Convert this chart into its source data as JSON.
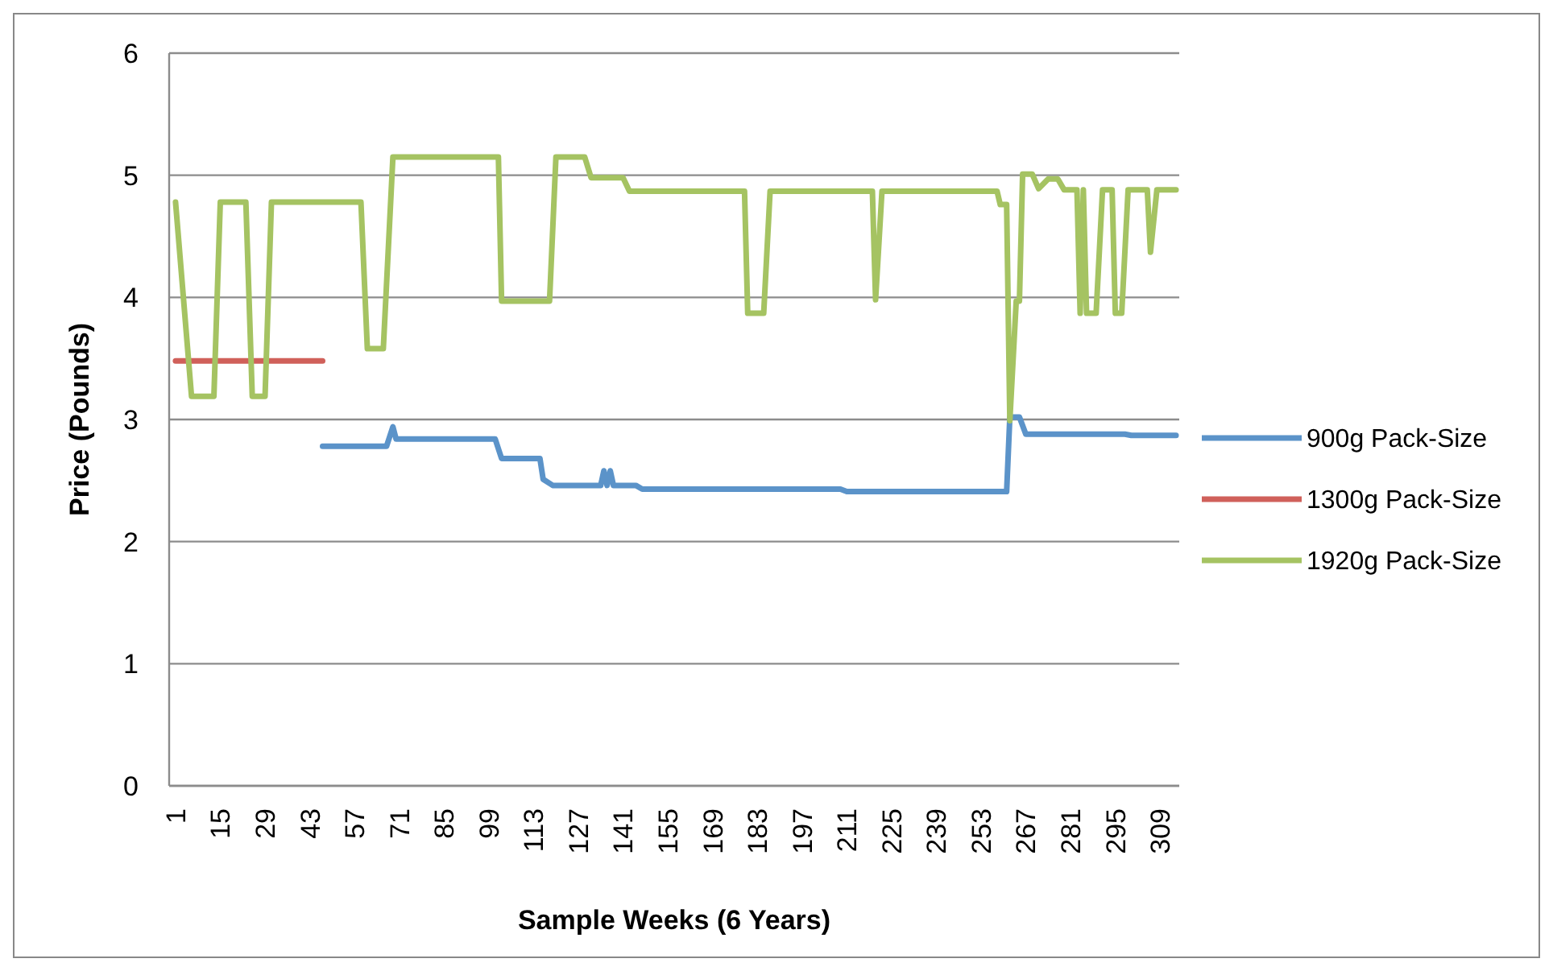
{
  "chart_data": {
    "type": "line",
    "xlabel": "Sample Weeks (6 Years)",
    "ylabel": "Price (Pounds)",
    "xlim": [
      -1,
      315
    ],
    "xticks": [
      1,
      15,
      29,
      43,
      57,
      71,
      85,
      99,
      113,
      127,
      141,
      155,
      169,
      183,
      197,
      211,
      225,
      239,
      253,
      267,
      281,
      295,
      309
    ],
    "ylim": [
      0,
      6
    ],
    "yticks": [
      0,
      1,
      2,
      3,
      4,
      5,
      6
    ],
    "grid": "y",
    "legend": "right",
    "line_style": "solid",
    "marker": "none",
    "series": [
      {
        "name": "900g Pack-Size",
        "color": "#5b93c9",
        "x": [
          47,
          67,
          69,
          70,
          101,
          103,
          115,
          116,
          119,
          134,
          135,
          136,
          137,
          138,
          145,
          147,
          209,
          211,
          261,
          262,
          265,
          267,
          298,
          300,
          314
        ],
        "values": [
          2.78,
          2.78,
          2.94,
          2.84,
          2.84,
          2.68,
          2.68,
          2.51,
          2.46,
          2.46,
          2.58,
          2.46,
          2.58,
          2.46,
          2.46,
          2.43,
          2.43,
          2.41,
          2.41,
          3.02,
          3.02,
          2.88,
          2.88,
          2.87,
          2.87
        ]
      },
      {
        "name": "1300g Pack-Size",
        "color": "#d0605a",
        "x": [
          1,
          47
        ],
        "values": [
          3.48,
          3.48
        ]
      },
      {
        "name": "1920g Pack-Size",
        "color": "#a5c362",
        "x": [
          1,
          6,
          13,
          15,
          23,
          25,
          29,
          31,
          59,
          61,
          66,
          69,
          102,
          103,
          118,
          120,
          129,
          131,
          141,
          143,
          179,
          180,
          185,
          187,
          219,
          220,
          222,
          258,
          259,
          261,
          262,
          264,
          265,
          266,
          269,
          271,
          274,
          277,
          279,
          283,
          284,
          285,
          286,
          289,
          291,
          294,
          295,
          297,
          299,
          305,
          306,
          308,
          314
        ],
        "values": [
          4.78,
          3.19,
          3.19,
          4.78,
          4.78,
          3.19,
          3.19,
          4.78,
          4.78,
          3.58,
          3.58,
          5.15,
          5.15,
          3.97,
          3.97,
          5.15,
          5.15,
          4.98,
          4.98,
          4.87,
          4.87,
          3.87,
          3.87,
          4.87,
          4.87,
          3.98,
          4.87,
          4.87,
          4.76,
          4.76,
          2.99,
          3.97,
          3.97,
          5.01,
          5.01,
          4.89,
          4.97,
          4.97,
          4.88,
          4.88,
          3.87,
          4.88,
          3.87,
          3.87,
          4.88,
          4.88,
          3.87,
          3.87,
          4.88,
          4.88,
          4.37,
          4.88,
          4.88
        ]
      }
    ]
  }
}
